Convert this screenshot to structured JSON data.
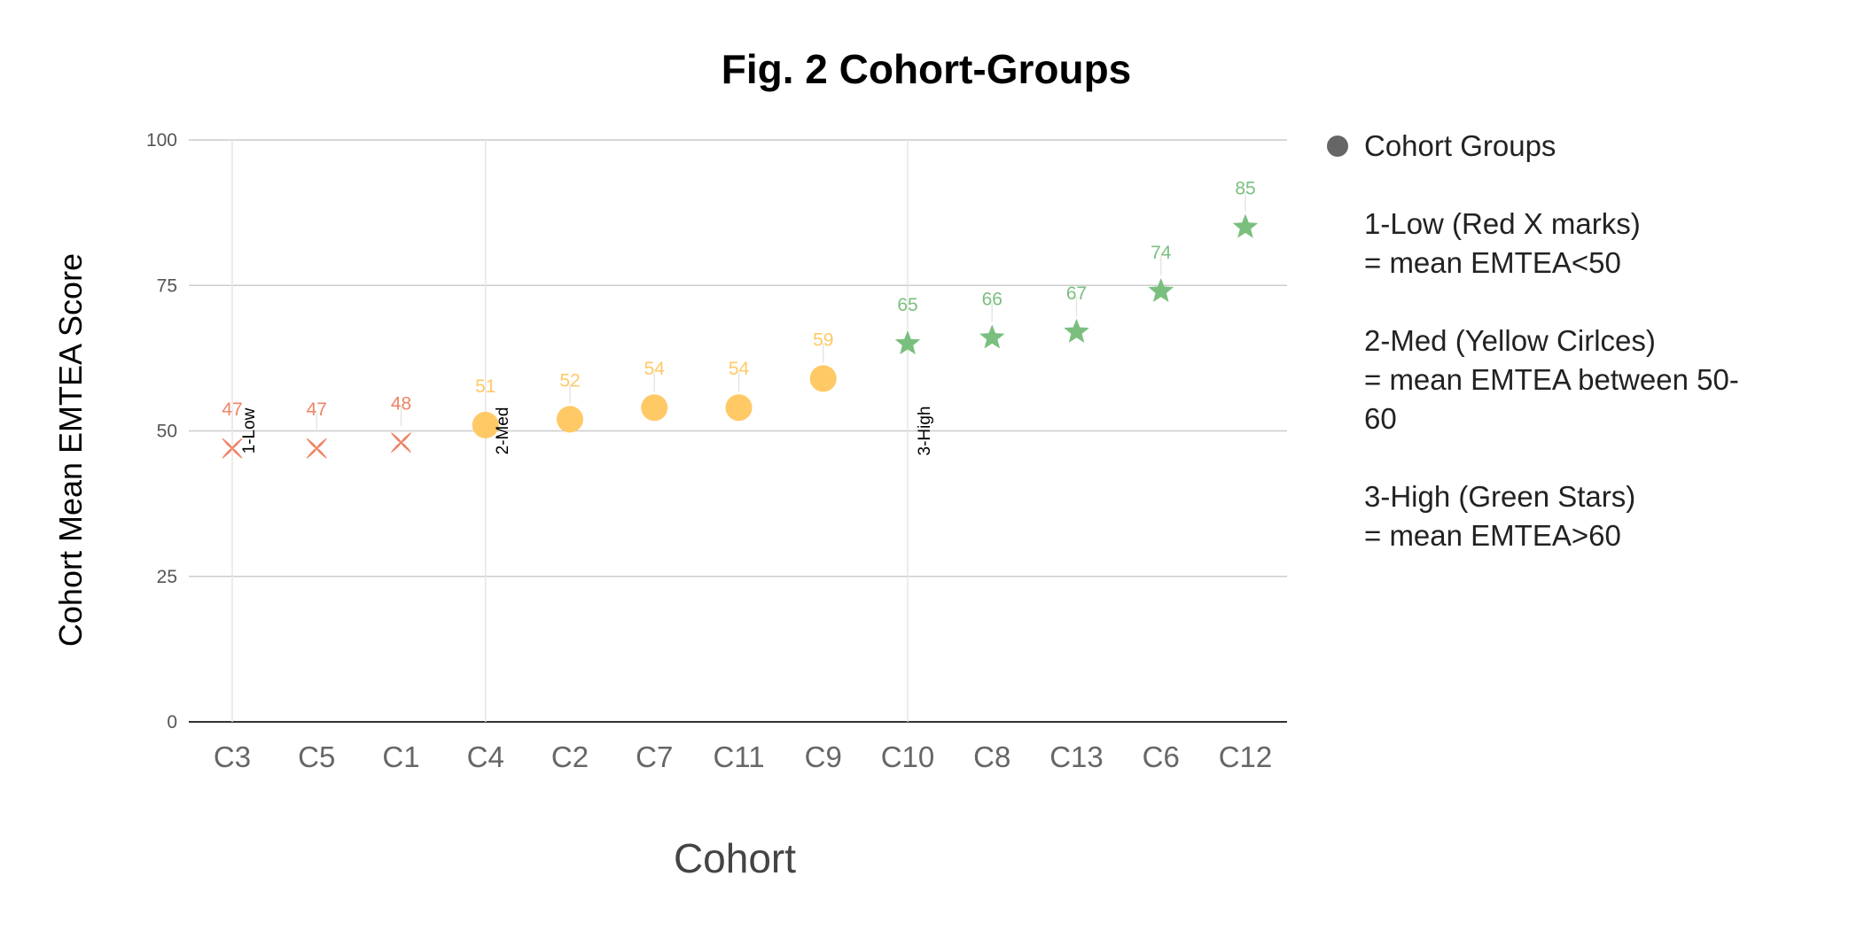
{
  "chart_data": {
    "type": "scatter",
    "title": "Fig. 2 Cohort-Groups",
    "xlabel": "Cohort",
    "ylabel": "Cohort Mean EMTEA Score",
    "ylim": [
      0,
      100
    ],
    "yticks": [
      0,
      25,
      50,
      75,
      100
    ],
    "grid": true,
    "legend_position": "right",
    "categories": [
      "C3",
      "C5",
      "C1",
      "C4",
      "C2",
      "C7",
      "C11",
      "C9",
      "C10",
      "C8",
      "C13",
      "C6",
      "C12"
    ],
    "series": [
      {
        "name": "Cohort Groups",
        "color": "#666666",
        "values": [
          47,
          47,
          48,
          51,
          52,
          54,
          54,
          59,
          65,
          66,
          67,
          74,
          85
        ],
        "data_labels": [
          "47",
          "47",
          "48",
          "51",
          "52",
          "54",
          "54",
          "59",
          "65",
          "66",
          "67",
          "74",
          "85"
        ]
      }
    ],
    "point_groups": [
      {
        "marker": "x",
        "color": "#EE8466",
        "categories": [
          "C3",
          "C5",
          "C1"
        ]
      },
      {
        "marker": "circle",
        "color": "#FFC966",
        "categories": [
          "C4",
          "C2",
          "C7",
          "C11",
          "C9"
        ]
      },
      {
        "marker": "star",
        "color": "#7BBF7F",
        "categories": [
          "C10",
          "C8",
          "C13",
          "C6",
          "C12"
        ]
      }
    ],
    "annotations": [
      {
        "text": "1-Low",
        "category": "C3",
        "y": 50
      },
      {
        "text": "2-Med",
        "category": "C4",
        "y": 50
      },
      {
        "text": "3-High",
        "category": "C10",
        "y": 50
      }
    ]
  },
  "legend": {
    "title": "Cohort Groups",
    "marker_color": "#666666",
    "groups": [
      {
        "lines": [
          "1-Low (Red X marks)",
          "= mean EMTEA<50"
        ]
      },
      {
        "lines": [
          "2-Med (Yellow Cirlces)",
          "= mean EMTEA between 50-",
          "60"
        ]
      },
      {
        "lines": [
          "3-High (Green Stars)",
          "= mean EMTEA>60"
        ]
      }
    ]
  }
}
